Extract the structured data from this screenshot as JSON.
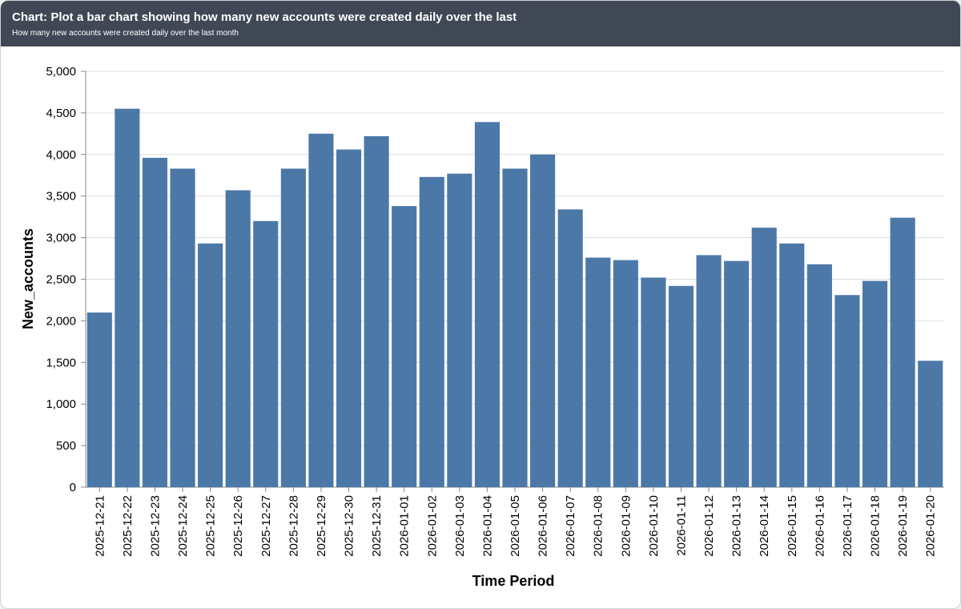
{
  "header": {
    "title": "Chart: Plot a bar chart showing how many new accounts were created daily over the last",
    "subtitle": "How many new accounts were created daily over the last month"
  },
  "chart_data": {
    "type": "bar",
    "x_label": "Time Period",
    "y_label": "New_accounts",
    "categories": [
      "2025-12-21",
      "2025-12-22",
      "2025-12-23",
      "2025-12-24",
      "2025-12-25",
      "2025-12-26",
      "2025-12-27",
      "2025-12-28",
      "2025-12-29",
      "2025-12-30",
      "2025-12-31",
      "2026-01-01",
      "2026-01-02",
      "2026-01-03",
      "2026-01-04",
      "2026-01-05",
      "2026-01-06",
      "2026-01-07",
      "2026-01-08",
      "2026-01-09",
      "2026-01-10",
      "2026-01-11",
      "2026-01-12",
      "2026-01-13",
      "2026-01-14",
      "2026-01-15",
      "2026-01-16",
      "2026-01-17",
      "2026-01-18",
      "2026-01-19",
      "2026-01-20"
    ],
    "values": [
      2100,
      4550,
      3960,
      3830,
      2930,
      3570,
      3200,
      3830,
      4250,
      4060,
      4220,
      3380,
      3730,
      3770,
      4390,
      3830,
      4000,
      3340,
      2760,
      2730,
      2520,
      2420,
      2790,
      2720,
      3120,
      2930,
      2680,
      2310,
      2480,
      3240,
      1520
    ],
    "color": "#4c78a8",
    "ylim": [
      0,
      5000
    ],
    "yticks": [
      0,
      500,
      {
        "value": 1000,
        "label": "1,000"
      },
      {
        "value": 1500,
        "label": "1,500"
      },
      {
        "value": 2000,
        "label": "2,000"
      },
      {
        "value": 2500,
        "label": "2,500"
      },
      {
        "value": 3000,
        "label": "3,000"
      },
      {
        "value": 3500,
        "label": "3,500"
      },
      {
        "value": 4000,
        "label": "4,000"
      },
      {
        "value": 4500,
        "label": "4,500"
      },
      {
        "value": 5000,
        "label": "5,000"
      }
    ],
    "grid": true
  }
}
